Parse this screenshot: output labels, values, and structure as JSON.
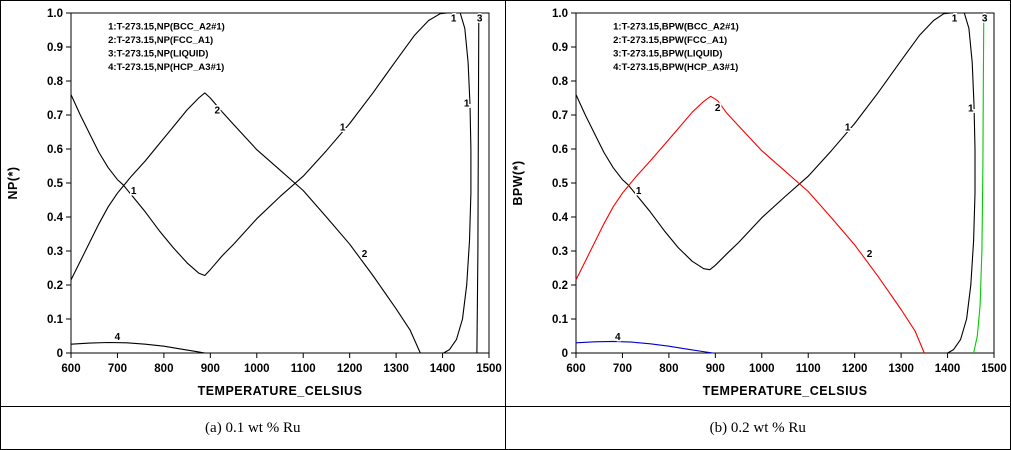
{
  "figure": {
    "background": "#ffffff",
    "border_color": "#000000"
  },
  "captions": {
    "left": "(a) 0.1 wt % Ru",
    "right": "(b) 0.2 wt % Ru"
  },
  "chart_data": [
    {
      "type": "line",
      "title": "",
      "xlabel": "TEMPERATURE_CELSIUS",
      "ylabel": "NP(*)",
      "xlim": [
        600,
        1500
      ],
      "ylim": [
        0,
        1.0
      ],
      "grid": false,
      "xtick_values": [
        600,
        700,
        800,
        900,
        1000,
        1100,
        1200,
        1300,
        1400,
        1500
      ],
      "xtick_labels": [
        "600",
        "700",
        "800",
        "900",
        "1000",
        "1100",
        "1200",
        "1300",
        "1400",
        "1500"
      ],
      "ytick_values": [
        0,
        0.1,
        0.2,
        0.3,
        0.4,
        0.5,
        0.6,
        0.7,
        0.8,
        0.9,
        1.0
      ],
      "ytick_labels": [
        "0",
        "0.1",
        "0.2",
        "0.3",
        "0.4",
        "0.5",
        "0.6",
        "0.7",
        "0.8",
        "0.9",
        "1.0"
      ],
      "legend_position": "upper-left-inside",
      "legend_anchor": {
        "x": 680,
        "y": 0.952
      },
      "legend": [
        {
          "text": "1:T-273.15,NP(BCC_A2#1)",
          "color": "#00008B"
        },
        {
          "text": "2:T-273.15,NP(FCC_A1)",
          "color": "#00008B"
        },
        {
          "text": "3:T-273.15,NP(LIQUID)",
          "color": "#00008B"
        },
        {
          "text": "4:T-273.15,NP(HCP_A3#1)",
          "color": "#00008B"
        }
      ],
      "series": [
        {
          "name": "BCC_A2#1",
          "color": "#000000",
          "points": [
            [
              600,
              0.76
            ],
            [
              620,
              0.7
            ],
            [
              640,
              0.645
            ],
            [
              660,
              0.59
            ],
            [
              680,
              0.545
            ],
            [
              700,
              0.51
            ],
            [
              712,
              0.495
            ],
            [
              730,
              0.465
            ],
            [
              760,
              0.415
            ],
            [
              790,
              0.36
            ],
            [
              820,
              0.31
            ],
            [
              850,
              0.265
            ],
            [
              875,
              0.235
            ],
            [
              888,
              0.228
            ],
            [
              900,
              0.245
            ],
            [
              925,
              0.285
            ],
            [
              950,
              0.32
            ],
            [
              1000,
              0.395
            ],
            [
              1050,
              0.46
            ],
            [
              1100,
              0.52
            ],
            [
              1150,
              0.595
            ],
            [
              1200,
              0.675
            ],
            [
              1250,
              0.765
            ],
            [
              1300,
              0.86
            ],
            [
              1340,
              0.935
            ],
            [
              1370,
              0.978
            ],
            [
              1395,
              0.998
            ],
            [
              1410,
              1.0
            ],
            [
              1438,
              1.0
            ],
            [
              1448,
              0.955
            ],
            [
              1455,
              0.855
            ],
            [
              1459,
              0.73
            ],
            [
              1461,
              0.6
            ],
            [
              1461,
              0.47
            ],
            [
              1458,
              0.33
            ],
            [
              1452,
              0.2
            ],
            [
              1443,
              0.1
            ],
            [
              1430,
              0.04
            ],
            [
              1415,
              0.01
            ],
            [
              1402,
              0.0
            ]
          ]
        },
        {
          "name": "FCC_A1",
          "color": "#000000",
          "points": [
            [
              600,
              0.215
            ],
            [
              620,
              0.27
            ],
            [
              640,
              0.325
            ],
            [
              660,
              0.38
            ],
            [
              680,
              0.43
            ],
            [
              700,
              0.47
            ],
            [
              712,
              0.49
            ],
            [
              730,
              0.52
            ],
            [
              760,
              0.565
            ],
            [
              790,
              0.615
            ],
            [
              820,
              0.665
            ],
            [
              850,
              0.715
            ],
            [
              875,
              0.75
            ],
            [
              888,
              0.765
            ],
            [
              900,
              0.75
            ],
            [
              925,
              0.71
            ],
            [
              950,
              0.672
            ],
            [
              1000,
              0.598
            ],
            [
              1050,
              0.538
            ],
            [
              1100,
              0.478
            ],
            [
              1150,
              0.4
            ],
            [
              1200,
              0.32
            ],
            [
              1250,
              0.228
            ],
            [
              1300,
              0.13
            ],
            [
              1330,
              0.068
            ],
            [
              1352,
              0.0
            ]
          ]
        },
        {
          "name": "LIQUID",
          "color": "#000000",
          "points": [
            [
              1474,
              0.0
            ],
            [
              1476,
              0.3
            ],
            [
              1477,
              0.62
            ],
            [
              1478,
              1.0
            ]
          ]
        },
        {
          "name": "HCP_A3#1",
          "color": "#000000",
          "points": [
            [
              600,
              0.026
            ],
            [
              640,
              0.029
            ],
            [
              680,
              0.031
            ],
            [
              720,
              0.03
            ],
            [
              760,
              0.026
            ],
            [
              800,
              0.02
            ],
            [
              840,
              0.011
            ],
            [
              870,
              0.004
            ],
            [
              888,
              0.0
            ]
          ]
        }
      ],
      "curve_labels": [
        {
          "text": "1",
          "x": 735,
          "y": 0.478,
          "color": "#00008B"
        },
        {
          "text": "2",
          "x": 915,
          "y": 0.715,
          "color": "#00008B"
        },
        {
          "text": "1",
          "x": 1185,
          "y": 0.665,
          "color": "#00008B"
        },
        {
          "text": "2",
          "x": 1232,
          "y": 0.292,
          "color": "#00008B"
        },
        {
          "text": "4",
          "x": 700,
          "y": 0.048,
          "color": "#00008B"
        },
        {
          "text": "1",
          "x": 1424,
          "y": 0.985,
          "color": "#00008B"
        },
        {
          "text": "3",
          "x": 1480,
          "y": 0.985,
          "color": "#00008B"
        },
        {
          "text": "1",
          "x": 1452,
          "y": 0.735,
          "color": "#00008B"
        }
      ]
    },
    {
      "type": "line",
      "title": "",
      "xlabel": "TEMPERATURE_CELSIUS",
      "ylabel": "BPW(*)",
      "xlim": [
        600,
        1500
      ],
      "ylim": [
        0,
        1.0
      ],
      "grid": false,
      "xtick_values": [
        600,
        700,
        800,
        900,
        1000,
        1100,
        1200,
        1300,
        1400,
        1500
      ],
      "xtick_labels": [
        "600",
        "700",
        "800",
        "900",
        "1000",
        "1100",
        "1200",
        "1300",
        "1400",
        "1500"
      ],
      "ytick_values": [
        0,
        0.1,
        0.2,
        0.3,
        0.4,
        0.5,
        0.6,
        0.7,
        0.8,
        0.9,
        1.0
      ],
      "ytick_labels": [
        "0",
        "0.1",
        "0.2",
        "0.3",
        "0.4",
        "0.5",
        "0.6",
        "0.7",
        "0.8",
        "0.9",
        "1.0"
      ],
      "legend_position": "upper-left-inside",
      "legend_anchor": {
        "x": 680,
        "y": 0.952
      },
      "legend": [
        {
          "text": "1:T-273.15,BPW(BCC_A2#1)",
          "color": "#000000"
        },
        {
          "text": "2:T-273.15,BPW(FCC_A1)",
          "color": "#FF0000"
        },
        {
          "text": "3:T-273.15,BPW(LIQUID)",
          "color": "#00CC00"
        },
        {
          "text": "4:T-273.15,BPW(HCP_A3#1)",
          "color": "#0000CD"
        }
      ],
      "series": [
        {
          "name": "BCC_A2#1",
          "color": "#000000",
          "points": [
            [
              600,
              0.76
            ],
            [
              620,
              0.7
            ],
            [
              640,
              0.645
            ],
            [
              660,
              0.59
            ],
            [
              680,
              0.545
            ],
            [
              700,
              0.51
            ],
            [
              712,
              0.495
            ],
            [
              730,
              0.465
            ],
            [
              760,
              0.415
            ],
            [
              790,
              0.36
            ],
            [
              820,
              0.31
            ],
            [
              850,
              0.27
            ],
            [
              875,
              0.248
            ],
            [
              888,
              0.245
            ],
            [
              900,
              0.258
            ],
            [
              925,
              0.292
            ],
            [
              950,
              0.325
            ],
            [
              1000,
              0.398
            ],
            [
              1050,
              0.46
            ],
            [
              1100,
              0.52
            ],
            [
              1150,
              0.595
            ],
            [
              1200,
              0.675
            ],
            [
              1250,
              0.765
            ],
            [
              1300,
              0.86
            ],
            [
              1340,
              0.935
            ],
            [
              1370,
              0.978
            ],
            [
              1392,
              0.998
            ],
            [
              1408,
              1.0
            ],
            [
              1436,
              1.0
            ],
            [
              1446,
              0.955
            ],
            [
              1453,
              0.855
            ],
            [
              1457,
              0.73
            ],
            [
              1459,
              0.6
            ],
            [
              1459,
              0.47
            ],
            [
              1456,
              0.33
            ],
            [
              1450,
              0.2
            ],
            [
              1441,
              0.1
            ],
            [
              1428,
              0.04
            ],
            [
              1413,
              0.01
            ],
            [
              1400,
              0.0
            ]
          ]
        },
        {
          "name": "FCC_A1",
          "color": "#FF0000",
          "points": [
            [
              600,
              0.215
            ],
            [
              620,
              0.27
            ],
            [
              640,
              0.325
            ],
            [
              660,
              0.38
            ],
            [
              680,
              0.43
            ],
            [
              700,
              0.47
            ],
            [
              712,
              0.49
            ],
            [
              730,
              0.52
            ],
            [
              760,
              0.565
            ],
            [
              790,
              0.612
            ],
            [
              820,
              0.66
            ],
            [
              850,
              0.708
            ],
            [
              875,
              0.74
            ],
            [
              890,
              0.755
            ],
            [
              905,
              0.742
            ],
            [
              925,
              0.705
            ],
            [
              950,
              0.668
            ],
            [
              1000,
              0.595
            ],
            [
              1050,
              0.535
            ],
            [
              1100,
              0.475
            ],
            [
              1150,
              0.398
            ],
            [
              1200,
              0.318
            ],
            [
              1250,
              0.226
            ],
            [
              1300,
              0.128
            ],
            [
              1330,
              0.065
            ],
            [
              1350,
              0.0
            ]
          ]
        },
        {
          "name": "LIQUID",
          "color": "#00CC00",
          "points": [
            [
              1456,
              0.0
            ],
            [
              1464,
              0.05
            ],
            [
              1470,
              0.14
            ],
            [
              1474,
              0.3
            ],
            [
              1476,
              0.55
            ],
            [
              1477,
              0.78
            ],
            [
              1478,
              1.0
            ]
          ]
        },
        {
          "name": "HCP_A3#1",
          "color": "#0000CD",
          "points": [
            [
              600,
              0.03
            ],
            [
              640,
              0.033
            ],
            [
              680,
              0.034
            ],
            [
              720,
              0.032
            ],
            [
              760,
              0.027
            ],
            [
              800,
              0.02
            ],
            [
              845,
              0.01
            ],
            [
              880,
              0.003
            ],
            [
              895,
              0.0
            ]
          ]
        }
      ],
      "curve_labels": [
        {
          "text": "1",
          "x": 735,
          "y": 0.478,
          "color": "#000000"
        },
        {
          "text": "2",
          "x": 905,
          "y": 0.722,
          "color": "#FF0000"
        },
        {
          "text": "1",
          "x": 1185,
          "y": 0.665,
          "color": "#000000"
        },
        {
          "text": "2",
          "x": 1232,
          "y": 0.292,
          "color": "#FF0000"
        },
        {
          "text": "4",
          "x": 690,
          "y": 0.048,
          "color": "#0000CD"
        },
        {
          "text": "1",
          "x": 1415,
          "y": 0.985,
          "color": "#000000"
        },
        {
          "text": "3",
          "x": 1480,
          "y": 0.985,
          "color": "#00CC00"
        },
        {
          "text": "1",
          "x": 1450,
          "y": 0.72,
          "color": "#000000"
        }
      ]
    }
  ]
}
